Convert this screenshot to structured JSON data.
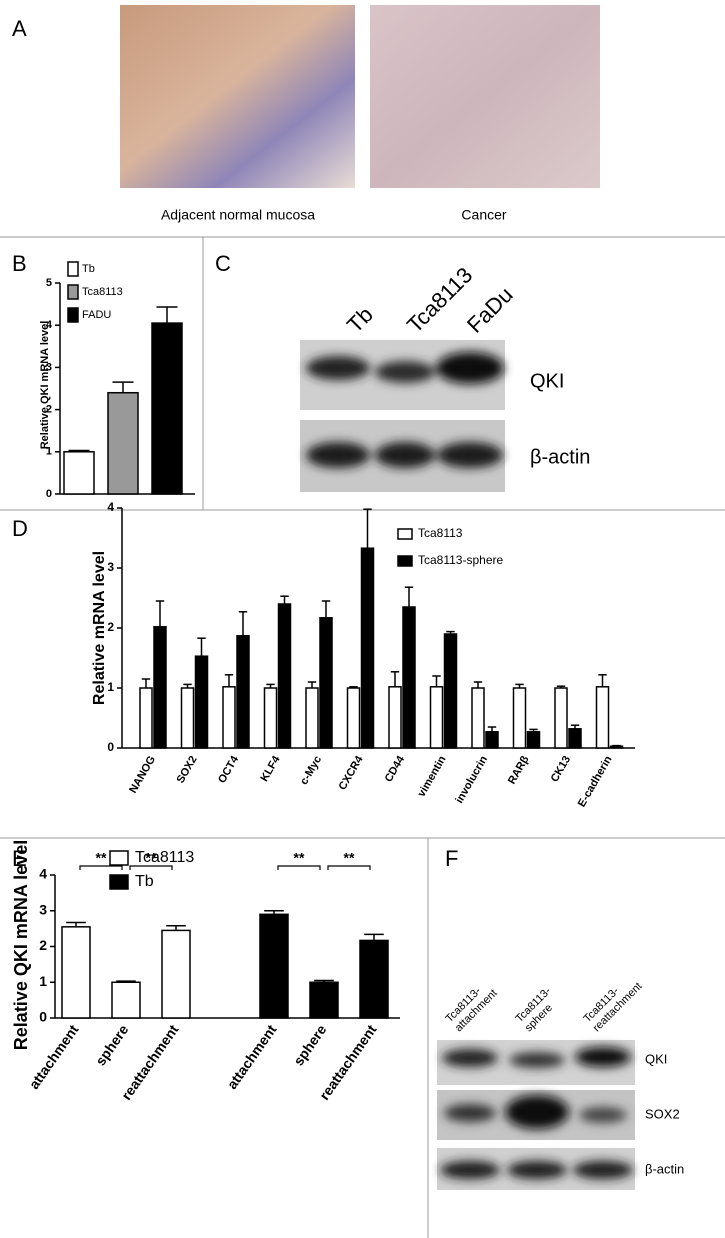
{
  "panel_a": {
    "label": "A",
    "captions": [
      "Adjacent normal mucosa",
      "Cancer"
    ]
  },
  "panel_c": {
    "label": "C",
    "lanes": [
      "Tb",
      "Tca8113",
      "FaDu"
    ],
    "bands": [
      "QKI",
      "β-actin"
    ]
  },
  "panel_f": {
    "label": "F",
    "lanes": [
      [
        "Tca8113-",
        "attachment"
      ],
      [
        "Tca8113-",
        "sphere"
      ],
      [
        "Tca8113-",
        "reattachment"
      ]
    ],
    "bands": [
      "QKI",
      "SOX2",
      "β-actin"
    ]
  },
  "chart_data": [
    {
      "type": "bar",
      "panel": "B",
      "ylabel": "Relative QKI mRNA level",
      "series": [
        {
          "name": "Tb",
          "color": "#ffffff",
          "values": [
            1.0
          ],
          "errors": [
            0.03
          ]
        },
        {
          "name": "Tca8113",
          "color": "#999999",
          "values": [
            2.4
          ],
          "errors": [
            0.25
          ]
        },
        {
          "name": "FADU",
          "color": "#000000",
          "values": [
            4.05
          ],
          "errors": [
            0.38
          ]
        }
      ],
      "ylim": [
        0,
        5
      ],
      "yticks": [
        0,
        1,
        2,
        3,
        4,
        5
      ]
    },
    {
      "type": "bar",
      "panel": "D",
      "ylabel": "Relative mRNA level",
      "categories": [
        "NANOG",
        "SOX2",
        "OCT4",
        "KLF4",
        "c-Myc",
        "CXCR4",
        "CD44",
        "vimentin",
        "involucrin",
        "RARβ",
        "CK13",
        "E-cadherin"
      ],
      "series": [
        {
          "name": "Tca8113",
          "color": "#ffffff",
          "values": [
            1.0,
            1.0,
            1.02,
            1.0,
            1.0,
            1.0,
            1.02,
            1.02,
            1.0,
            1.0,
            1.0,
            1.02
          ],
          "errors": [
            0.15,
            0.06,
            0.2,
            0.06,
            0.1,
            0.02,
            0.25,
            0.18,
            0.1,
            0.06,
            0.03,
            0.2
          ]
        },
        {
          "name": "Tca8113-sphere",
          "color": "#000000",
          "values": [
            2.02,
            1.53,
            1.87,
            2.4,
            2.17,
            3.33,
            2.35,
            1.9,
            0.27,
            0.27,
            0.32,
            0.03
          ],
          "errors": [
            0.43,
            0.3,
            0.4,
            0.13,
            0.28,
            0.65,
            0.33,
            0.04,
            0.08,
            0.04,
            0.06,
            0.01
          ]
        }
      ],
      "ylim": [
        0,
        4
      ],
      "yticks": [
        0,
        1,
        2,
        3,
        4
      ]
    },
    {
      "type": "bar",
      "panel": "E",
      "ylabel": "Relative QKI mRNA level",
      "categories": [
        "attachment",
        "sphere",
        "reattachment",
        "attachment",
        "sphere",
        "reattachment"
      ],
      "series": [
        {
          "name": "Tca8113",
          "color": "#ffffff",
          "values": [
            2.55,
            1.0,
            2.45,
            null,
            null,
            null
          ],
          "errors": [
            0.12,
            0.03,
            0.13,
            null,
            null,
            null
          ]
        },
        {
          "name": "Tb",
          "color": "#000000",
          "values": [
            null,
            null,
            null,
            2.9,
            1.0,
            2.17
          ],
          "errors": [
            null,
            null,
            null,
            0.1,
            0.05,
            0.17
          ]
        }
      ],
      "annotations": [
        "**",
        "**",
        "**",
        "**"
      ],
      "ylim": [
        0,
        4
      ],
      "yticks": [
        0,
        1,
        2,
        3,
        4
      ]
    }
  ]
}
